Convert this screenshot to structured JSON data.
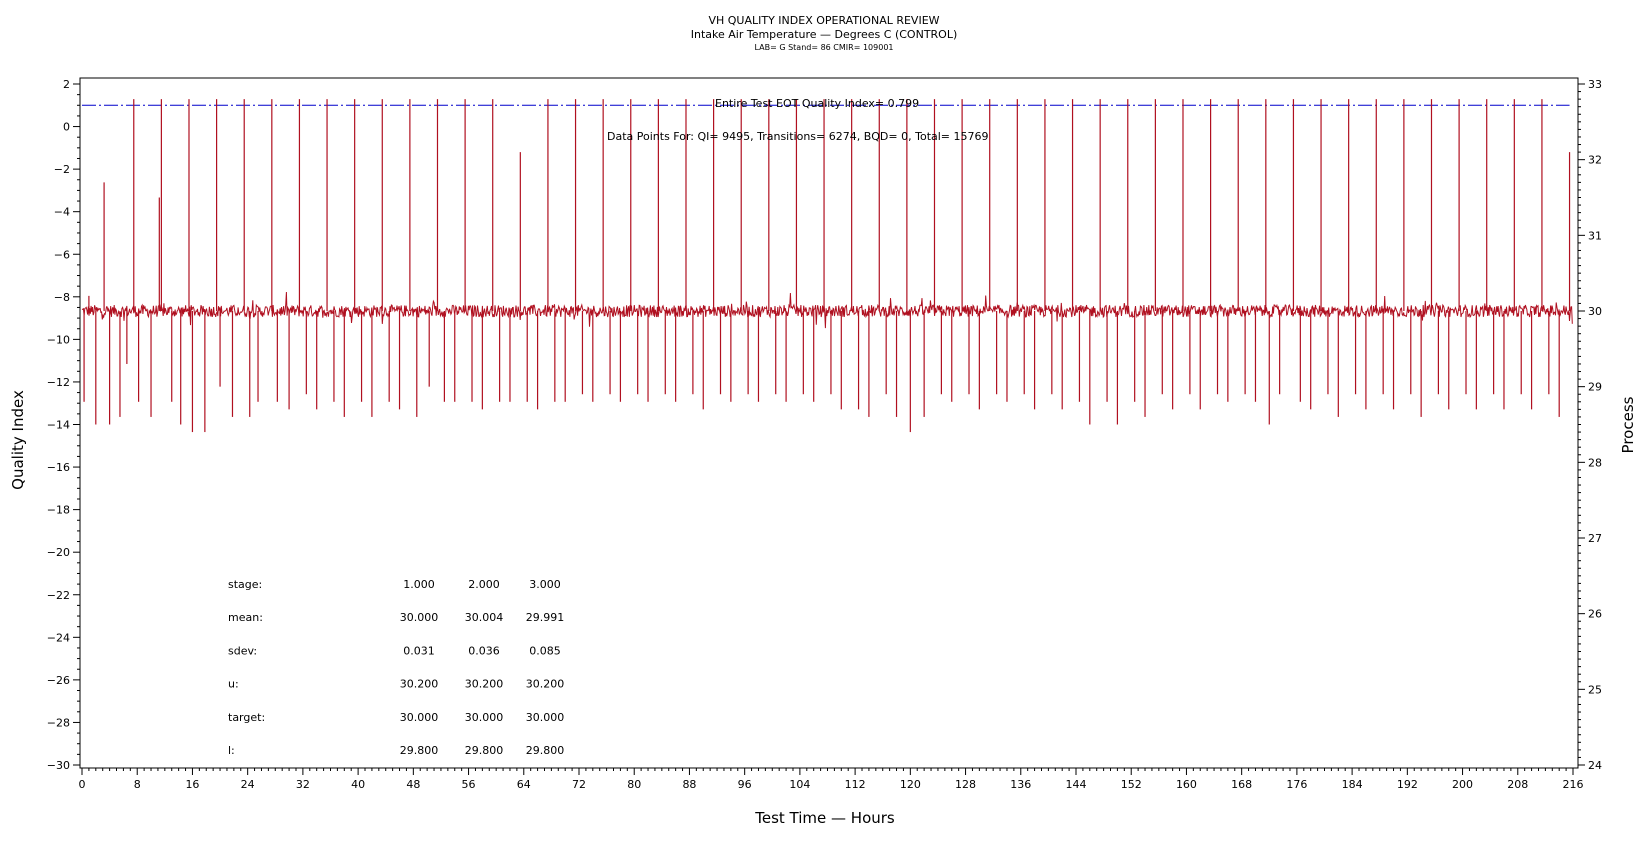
{
  "titles": {
    "main": "VH QUALITY INDEX OPERATIONAL REVIEW",
    "sub": "Intake Air Temperature — Degrees C (CONTROL)",
    "info": "LAB= G Stand= 86 CMIR= 109001"
  },
  "annotations": {
    "eot": "Entire Test EOT Quality Index=   0.799",
    "points": "Data Points For: QI=  9495, Transitions=  6274, BQD=     0, Total= 15769"
  },
  "stats": {
    "rows": [
      {
        "label": "stage:",
        "values": [
          "1.000",
          "2.000",
          "3.000"
        ]
      },
      {
        "label": "mean:",
        "values": [
          "30.000",
          "30.004",
          "29.991"
        ]
      },
      {
        "label": "sdev:",
        "values": [
          "0.031",
          "0.036",
          "0.085"
        ]
      },
      {
        "label": "u:",
        "values": [
          "30.200",
          "30.200",
          "30.200"
        ]
      },
      {
        "label": "target:",
        "values": [
          "30.000",
          "30.000",
          "30.000"
        ]
      },
      {
        "label": "l:",
        "values": [
          "29.800",
          "29.800",
          "29.800"
        ]
      }
    ]
  },
  "chart_data": {
    "type": "line",
    "xlabel": "Test Time — Hours",
    "ylabel": "Quality Index",
    "y2label": "Process",
    "xlim": [
      0,
      216
    ],
    "ylim": [
      -30,
      2
    ],
    "y2lim": [
      24,
      33
    ],
    "xticks": [
      0,
      8,
      16,
      24,
      32,
      40,
      48,
      56,
      64,
      72,
      80,
      88,
      96,
      104,
      112,
      120,
      128,
      136,
      144,
      152,
      160,
      168,
      176,
      184,
      192,
      200,
      208,
      216
    ],
    "yticks": [
      2,
      0,
      -2,
      -4,
      -6,
      -8,
      -10,
      -12,
      -14,
      -16,
      -18,
      -20,
      -22,
      -24,
      -26,
      -28,
      -30
    ],
    "y2ticks": [
      33,
      32,
      31,
      30,
      29,
      28,
      27,
      26,
      25,
      24
    ],
    "grid": false,
    "series": [
      {
        "axis": "left",
        "color": "#0000cc",
        "style": "dash-dot",
        "x": [
          0,
          212.5,
          215.5
        ],
        "y": [
          1,
          1,
          1
        ]
      },
      {
        "axis": "right",
        "color": "#b01020",
        "base": 30.0,
        "spikes": [
          {
            "x": 0.3,
            "y": 28.8
          },
          {
            "x": 1.0,
            "y": 30.2
          },
          {
            "x": 2.0,
            "y": 28.5
          },
          {
            "x": 3.2,
            "y": 31.7
          },
          {
            "x": 4.0,
            "y": 28.5
          },
          {
            "x": 5.5,
            "y": 28.6
          },
          {
            "x": 6.5,
            "y": 29.3
          },
          {
            "x": 7.5,
            "y": 32.8
          },
          {
            "x": 8.2,
            "y": 28.8
          },
          {
            "x": 10.0,
            "y": 28.6
          },
          {
            "x": 11.2,
            "y": 31.5
          },
          {
            "x": 11.5,
            "y": 32.8
          },
          {
            "x": 13.0,
            "y": 28.8
          },
          {
            "x": 14.3,
            "y": 28.5
          },
          {
            "x": 15.5,
            "y": 32.8
          },
          {
            "x": 16.0,
            "y": 28.4
          },
          {
            "x": 17.8,
            "y": 28.4
          },
          {
            "x": 19.5,
            "y": 32.8
          },
          {
            "x": 20.0,
            "y": 29.0
          },
          {
            "x": 21.8,
            "y": 28.6
          },
          {
            "x": 23.5,
            "y": 32.8
          },
          {
            "x": 24.3,
            "y": 28.6
          },
          {
            "x": 25.5,
            "y": 28.8
          },
          {
            "x": 27.5,
            "y": 32.8
          },
          {
            "x": 28.3,
            "y": 28.8
          },
          {
            "x": 30.0,
            "y": 28.7
          },
          {
            "x": 31.5,
            "y": 32.8
          },
          {
            "x": 32.5,
            "y": 28.9
          },
          {
            "x": 34.0,
            "y": 28.7
          },
          {
            "x": 35.5,
            "y": 32.8
          },
          {
            "x": 36.5,
            "y": 28.8
          },
          {
            "x": 38.0,
            "y": 28.6
          },
          {
            "x": 39.5,
            "y": 32.8
          },
          {
            "x": 40.5,
            "y": 28.8
          },
          {
            "x": 42.0,
            "y": 28.6
          },
          {
            "x": 43.5,
            "y": 32.8
          },
          {
            "x": 44.5,
            "y": 28.8
          },
          {
            "x": 46.0,
            "y": 28.7
          },
          {
            "x": 47.5,
            "y": 32.8
          },
          {
            "x": 48.5,
            "y": 28.6
          },
          {
            "x": 50.3,
            "y": 29.0
          },
          {
            "x": 51.5,
            "y": 32.8
          },
          {
            "x": 52.5,
            "y": 28.8
          },
          {
            "x": 54.0,
            "y": 28.8
          },
          {
            "x": 55.5,
            "y": 32.8
          },
          {
            "x": 56.5,
            "y": 28.8
          },
          {
            "x": 58.0,
            "y": 28.7
          },
          {
            "x": 59.5,
            "y": 32.8
          },
          {
            "x": 60.5,
            "y": 28.8
          },
          {
            "x": 62.0,
            "y": 28.8
          },
          {
            "x": 63.5,
            "y": 32.1
          },
          {
            "x": 64.5,
            "y": 28.8
          },
          {
            "x": 66.0,
            "y": 28.7
          },
          {
            "x": 67.5,
            "y": 32.8
          },
          {
            "x": 68.5,
            "y": 28.8
          },
          {
            "x": 70.0,
            "y": 28.8
          },
          {
            "x": 71.5,
            "y": 32.8
          },
          {
            "x": 72.5,
            "y": 28.9
          },
          {
            "x": 74.0,
            "y": 28.8
          },
          {
            "x": 75.5,
            "y": 32.8
          },
          {
            "x": 76.5,
            "y": 28.9
          },
          {
            "x": 78.0,
            "y": 28.8
          },
          {
            "x": 79.5,
            "y": 32.8
          },
          {
            "x": 80.5,
            "y": 28.9
          },
          {
            "x": 82.0,
            "y": 28.8
          },
          {
            "x": 83.5,
            "y": 32.8
          },
          {
            "x": 84.5,
            "y": 28.9
          },
          {
            "x": 86.0,
            "y": 28.8
          },
          {
            "x": 87.5,
            "y": 32.8
          },
          {
            "x": 88.5,
            "y": 28.9
          },
          {
            "x": 90.0,
            "y": 28.7
          },
          {
            "x": 91.5,
            "y": 32.8
          },
          {
            "x": 92.5,
            "y": 28.9
          },
          {
            "x": 94.0,
            "y": 28.8
          },
          {
            "x": 95.5,
            "y": 32.8
          },
          {
            "x": 96.5,
            "y": 28.9
          },
          {
            "x": 98.0,
            "y": 28.8
          },
          {
            "x": 99.5,
            "y": 32.8
          },
          {
            "x": 100.5,
            "y": 28.9
          },
          {
            "x": 102.0,
            "y": 28.8
          },
          {
            "x": 103.5,
            "y": 32.8
          },
          {
            "x": 104.5,
            "y": 28.9
          },
          {
            "x": 106.0,
            "y": 28.8
          },
          {
            "x": 107.5,
            "y": 32.8
          },
          {
            "x": 108.5,
            "y": 28.9
          },
          {
            "x": 110.0,
            "y": 28.7
          },
          {
            "x": 111.5,
            "y": 32.8
          },
          {
            "x": 112.5,
            "y": 28.7
          },
          {
            "x": 114.0,
            "y": 28.6
          },
          {
            "x": 115.5,
            "y": 32.8
          },
          {
            "x": 116.5,
            "y": 28.9
          },
          {
            "x": 118.0,
            "y": 28.6
          },
          {
            "x": 119.5,
            "y": 32.8
          },
          {
            "x": 120.0,
            "y": 28.4
          },
          {
            "x": 122.0,
            "y": 28.6
          },
          {
            "x": 123.5,
            "y": 32.8
          },
          {
            "x": 124.5,
            "y": 28.9
          },
          {
            "x": 126.0,
            "y": 28.8
          },
          {
            "x": 127.5,
            "y": 32.8
          },
          {
            "x": 128.5,
            "y": 28.9
          },
          {
            "x": 130.0,
            "y": 28.7
          },
          {
            "x": 131.5,
            "y": 32.8
          },
          {
            "x": 132.5,
            "y": 28.9
          },
          {
            "x": 134.0,
            "y": 28.8
          },
          {
            "x": 135.5,
            "y": 32.8
          },
          {
            "x": 136.5,
            "y": 28.9
          },
          {
            "x": 138.0,
            "y": 28.7
          },
          {
            "x": 139.5,
            "y": 32.8
          },
          {
            "x": 140.5,
            "y": 28.9
          },
          {
            "x": 142.0,
            "y": 28.7
          },
          {
            "x": 143.5,
            "y": 32.8
          },
          {
            "x": 144.5,
            "y": 28.8
          },
          {
            "x": 146.0,
            "y": 28.5
          },
          {
            "x": 147.5,
            "y": 32.8
          },
          {
            "x": 148.5,
            "y": 28.8
          },
          {
            "x": 150.0,
            "y": 28.5
          },
          {
            "x": 151.5,
            "y": 32.8
          },
          {
            "x": 152.5,
            "y": 28.8
          },
          {
            "x": 154.0,
            "y": 28.6
          },
          {
            "x": 155.5,
            "y": 32.8
          },
          {
            "x": 156.5,
            "y": 28.9
          },
          {
            "x": 158.0,
            "y": 28.7
          },
          {
            "x": 159.5,
            "y": 32.8
          },
          {
            "x": 160.5,
            "y": 28.9
          },
          {
            "x": 162.0,
            "y": 28.7
          },
          {
            "x": 163.5,
            "y": 32.8
          },
          {
            "x": 164.5,
            "y": 28.9
          },
          {
            "x": 166.0,
            "y": 28.8
          },
          {
            "x": 167.5,
            "y": 32.8
          },
          {
            "x": 168.5,
            "y": 28.9
          },
          {
            "x": 170.0,
            "y": 28.8
          },
          {
            "x": 171.5,
            "y": 32.8
          },
          {
            "x": 172.0,
            "y": 28.5
          },
          {
            "x": 173.5,
            "y": 28.9
          },
          {
            "x": 175.5,
            "y": 32.8
          },
          {
            "x": 176.5,
            "y": 28.8
          },
          {
            "x": 178.0,
            "y": 28.7
          },
          {
            "x": 179.5,
            "y": 32.8
          },
          {
            "x": 180.5,
            "y": 28.9
          },
          {
            "x": 182.0,
            "y": 28.6
          },
          {
            "x": 183.5,
            "y": 32.8
          },
          {
            "x": 184.5,
            "y": 28.9
          },
          {
            "x": 186.0,
            "y": 28.7
          },
          {
            "x": 187.5,
            "y": 32.8
          },
          {
            "x": 188.5,
            "y": 28.9
          },
          {
            "x": 190.0,
            "y": 28.7
          },
          {
            "x": 191.5,
            "y": 32.8
          },
          {
            "x": 192.5,
            "y": 28.9
          },
          {
            "x": 194.0,
            "y": 28.6
          },
          {
            "x": 195.5,
            "y": 32.8
          },
          {
            "x": 196.5,
            "y": 28.9
          },
          {
            "x": 198.0,
            "y": 28.7
          },
          {
            "x": 199.5,
            "y": 32.8
          },
          {
            "x": 200.5,
            "y": 28.9
          },
          {
            "x": 202.0,
            "y": 28.7
          },
          {
            "x": 203.5,
            "y": 32.8
          },
          {
            "x": 204.5,
            "y": 28.9
          },
          {
            "x": 206.0,
            "y": 28.7
          },
          {
            "x": 207.5,
            "y": 32.8
          },
          {
            "x": 208.5,
            "y": 28.9
          },
          {
            "x": 210.0,
            "y": 28.7
          },
          {
            "x": 211.5,
            "y": 32.8
          },
          {
            "x": 212.5,
            "y": 28.9
          },
          {
            "x": 214.0,
            "y": 28.6
          },
          {
            "x": 215.5,
            "y": 32.1
          }
        ]
      }
    ]
  }
}
